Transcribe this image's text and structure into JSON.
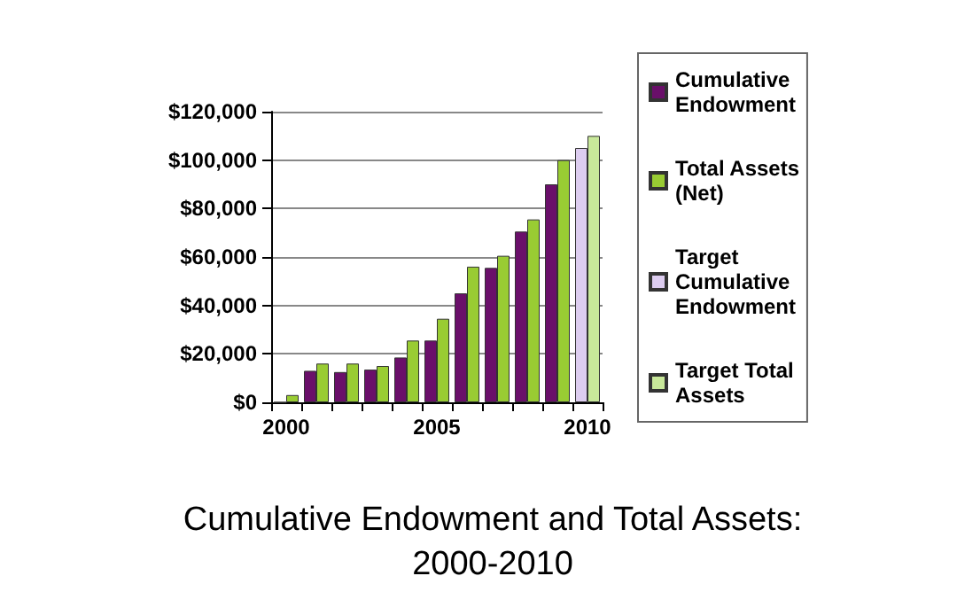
{
  "chart_data": {
    "type": "bar",
    "title": "Cumulative Endowment and Total Assets:\n2000-2010",
    "categories": [
      "2000",
      null,
      null,
      null,
      null,
      "2005",
      null,
      null,
      null,
      null,
      "2010"
    ],
    "series": [
      {
        "name": "Cumulative\nEndowment",
        "color": "#6a0f6a",
        "values": [
          0,
          13000,
          12500,
          13500,
          18500,
          25500,
          45000,
          55500,
          70500,
          90000,
          null
        ]
      },
      {
        "name": "Total Assets\n(Net)",
        "color": "#99cc33",
        "values": [
          3000,
          16000,
          16000,
          15000,
          25500,
          34500,
          56000,
          60500,
          75500,
          100000,
          null
        ]
      },
      {
        "name": "Target\nCumulative\nEndowment",
        "color": "#ddcdf0",
        "values": [
          null,
          null,
          null,
          null,
          null,
          null,
          null,
          null,
          null,
          null,
          105000
        ]
      },
      {
        "name": "Target Total\nAssets",
        "color": "#c8e89a",
        "values": [
          null,
          null,
          null,
          null,
          null,
          null,
          null,
          null,
          null,
          null,
          110000
        ]
      }
    ],
    "ylim": [
      0,
      120000
    ],
    "yticks": [
      {
        "value": 0,
        "label": "$0"
      },
      {
        "value": 20000,
        "label": "$20,000"
      },
      {
        "value": 40000,
        "label": "$40,000"
      },
      {
        "value": 60000,
        "label": "$60,000"
      },
      {
        "value": 80000,
        "label": "$80,000"
      },
      {
        "value": 100000,
        "label": "$100,000"
      },
      {
        "value": 120000,
        "label": "$120,000"
      }
    ],
    "grid": "y",
    "legend": "right"
  }
}
